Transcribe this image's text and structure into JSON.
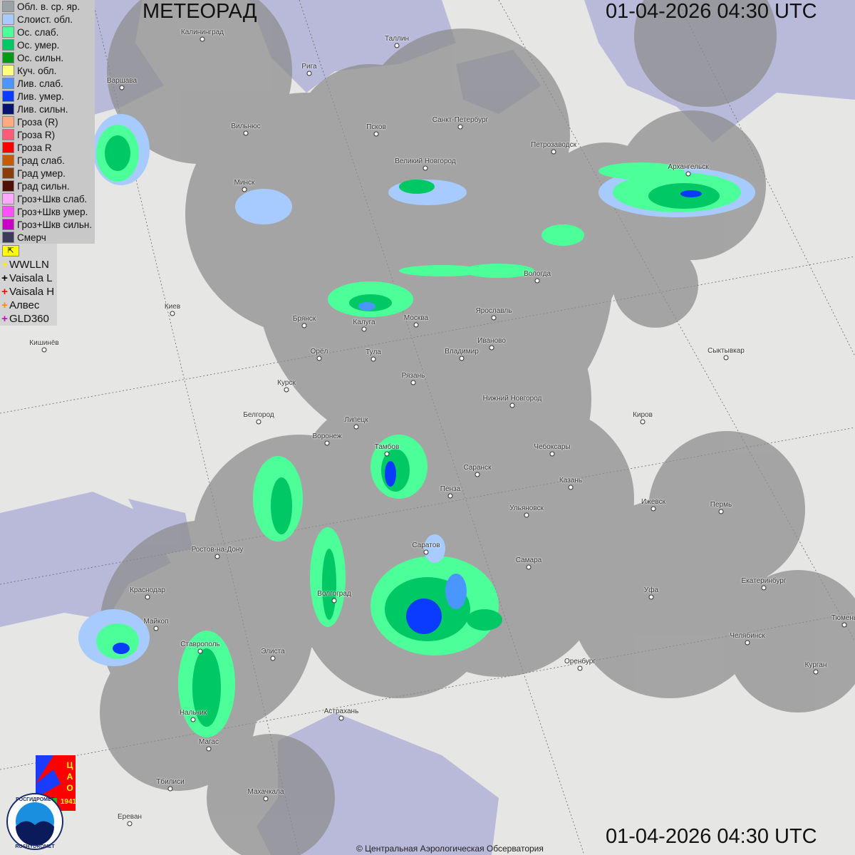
{
  "header": {
    "title": "МЕТЕОРАД",
    "datetime_top": "01-04-2026  04:30 UTC",
    "datetime_bottom": "01-04-2026  04:30 UTC"
  },
  "legend": [
    {
      "label": "Обл. в. ср. яр.",
      "color": "#9aa4a8"
    },
    {
      "label": "Слоист. обл.",
      "color": "#a8cbff"
    },
    {
      "label": "Ос. слаб.",
      "color": "#4dff99"
    },
    {
      "label": "Ос. умер.",
      "color": "#00c864"
    },
    {
      "label": "Ос. сильн.",
      "color": "#009c14"
    },
    {
      "label": "Куч. обл.",
      "color": "#ffff80"
    },
    {
      "label": "Лив. слаб.",
      "color": "#4a96ff"
    },
    {
      "label": "Лив. умер.",
      "color": "#0a3cff"
    },
    {
      "label": "Лив. сильн.",
      "color": "#081470"
    },
    {
      "label": "Гроза (R)",
      "color": "#ffaa80"
    },
    {
      "label": "Гроза R)",
      "color": "#ff5a78"
    },
    {
      "label": "Гроза R",
      "color": "#ff0000"
    },
    {
      "label": "Град слаб.",
      "color": "#c85a00"
    },
    {
      "label": "Град умер.",
      "color": "#8a3c0a"
    },
    {
      "label": "Град сильн.",
      "color": "#501008"
    },
    {
      "label": "Гроз+Шкв слаб.",
      "color": "#ffaaff"
    },
    {
      "label": "Гроз+Шкв умер.",
      "color": "#ff50ff"
    },
    {
      "label": "Гроз+Шкв сильн.",
      "color": "#c800c8"
    },
    {
      "label": "Смерч",
      "color": "#3c3c5a"
    }
  ],
  "lightning": [
    {
      "label": "WWLLN",
      "color": "#ffee00"
    },
    {
      "label": "Vaisala L",
      "color": "#000000"
    },
    {
      "label": "Vaisala H",
      "color": "#ff0000"
    },
    {
      "label": "Алвес",
      "color": "#ff8800"
    },
    {
      "label": "GLD360",
      "color": "#cc00cc"
    }
  ],
  "cities": [
    "Калининград",
    "Таллин",
    "Рига",
    "Варшава",
    "Вильнюс",
    "Псков",
    "Санкт-Петербург",
    "Петрозаводск",
    "Великий Новгород",
    "Архангельск",
    "Минск",
    "Вологда",
    "Ярославль",
    "Москва",
    "Киев",
    "Брянск",
    "Калуга",
    "Иваново",
    "Кишинёв",
    "Орёл",
    "Тула",
    "Владимир",
    "Сыктывкар",
    "Рязань",
    "Курск",
    "Нижний Новгород",
    "Белгород",
    "Киров",
    "Липецк",
    "Воронеж",
    "Тамбов",
    "Чебоксары",
    "Саранск",
    "Казань",
    "Пенза",
    "Ижевск",
    "Пермь",
    "Ульяновск",
    "Ростов-на-Дону",
    "Саратов",
    "Самара",
    "Краснодар",
    "Волгоград",
    "Уфа",
    "Екатеринбург",
    "Майкоп",
    "Тюмень",
    "Челябинск",
    "Ставрополь",
    "Элиста",
    "Оренбург",
    "Курган",
    "Астрахань",
    "Нальчик",
    "Магас",
    "Тбилиси",
    "Махачкала",
    "Ереван"
  ],
  "logos": {
    "cao": "ЦАО 1941",
    "roshydromet": "РОСГИДРОМЕТ ROSHYDROMET"
  },
  "copyright": "© Центральная Аэрологическая Обсерватория",
  "colors": {
    "radar_coverage": "#8c8c8c",
    "water": "#b4b4d8",
    "land": "#e6e6e4"
  }
}
